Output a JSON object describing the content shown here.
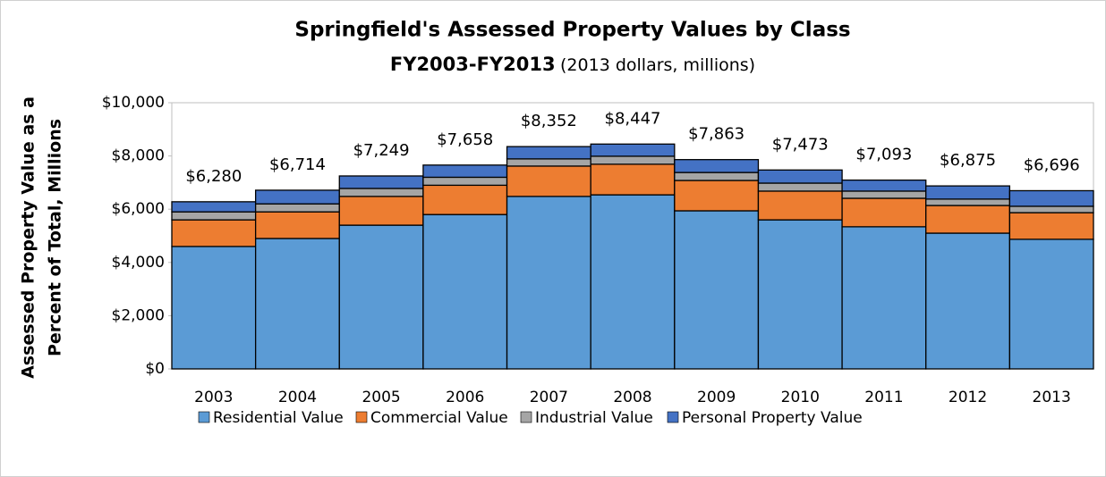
{
  "chart_data": {
    "type": "stacked_bar",
    "title": "Springfield's Assessed Property Values by Class",
    "subtitle_bold": "FY2003-FY2013",
    "subtitle": "(2013 dollars, millions)",
    "y_label": [
      "Assessed Property Value as a",
      "Percent of Total, Millions"
    ],
    "categories": [
      "2003",
      "2004",
      "2005",
      "2006",
      "2007",
      "2008",
      "2009",
      "2010",
      "2011",
      "2012",
      "2013"
    ],
    "series": [
      {
        "name": "Residential Value",
        "color": "#5b9bd5",
        "values": [
          4600,
          4900,
          5400,
          5800,
          6480,
          6540,
          5940,
          5600,
          5340,
          5100,
          4870
        ]
      },
      {
        "name": "Commercial Value",
        "color": "#ed7d31",
        "values": [
          1000,
          1000,
          1080,
          1100,
          1140,
          1150,
          1140,
          1080,
          1070,
          1040,
          1000
        ]
      },
      {
        "name": "Industrial Value",
        "color": "#a5a5a5",
        "values": [
          300,
          300,
          300,
          300,
          270,
          300,
          300,
          300,
          270,
          240,
          240
        ]
      },
      {
        "name": "Personal Property Value",
        "color": "#4472c4",
        "values": [
          380,
          514,
          469,
          458,
          462,
          457,
          483,
          493,
          413,
          495,
          586
        ]
      }
    ],
    "totals": [
      6280,
      6714,
      7249,
      7658,
      8352,
      8447,
      7863,
      7473,
      7093,
      6875,
      6696
    ],
    "total_labels": [
      "$6,280",
      "$6,714",
      "$7,249",
      "$7,658",
      "$8,352",
      "$8,447",
      "$7,863",
      "$7,473",
      "$7,093",
      "$6,875",
      "$6,696"
    ],
    "ylim": [
      0,
      10000
    ],
    "yticks": [
      {
        "value": 0,
        "label": "$0"
      },
      {
        "value": 2000,
        "label": "$2,000"
      },
      {
        "value": 4000,
        "label": "$4,000"
      },
      {
        "value": 6000,
        "label": "$6,000"
      },
      {
        "value": 8000,
        "label": "$8,000"
      },
      {
        "value": 10000,
        "label": "$10,000"
      }
    ],
    "legend": "bottom"
  }
}
